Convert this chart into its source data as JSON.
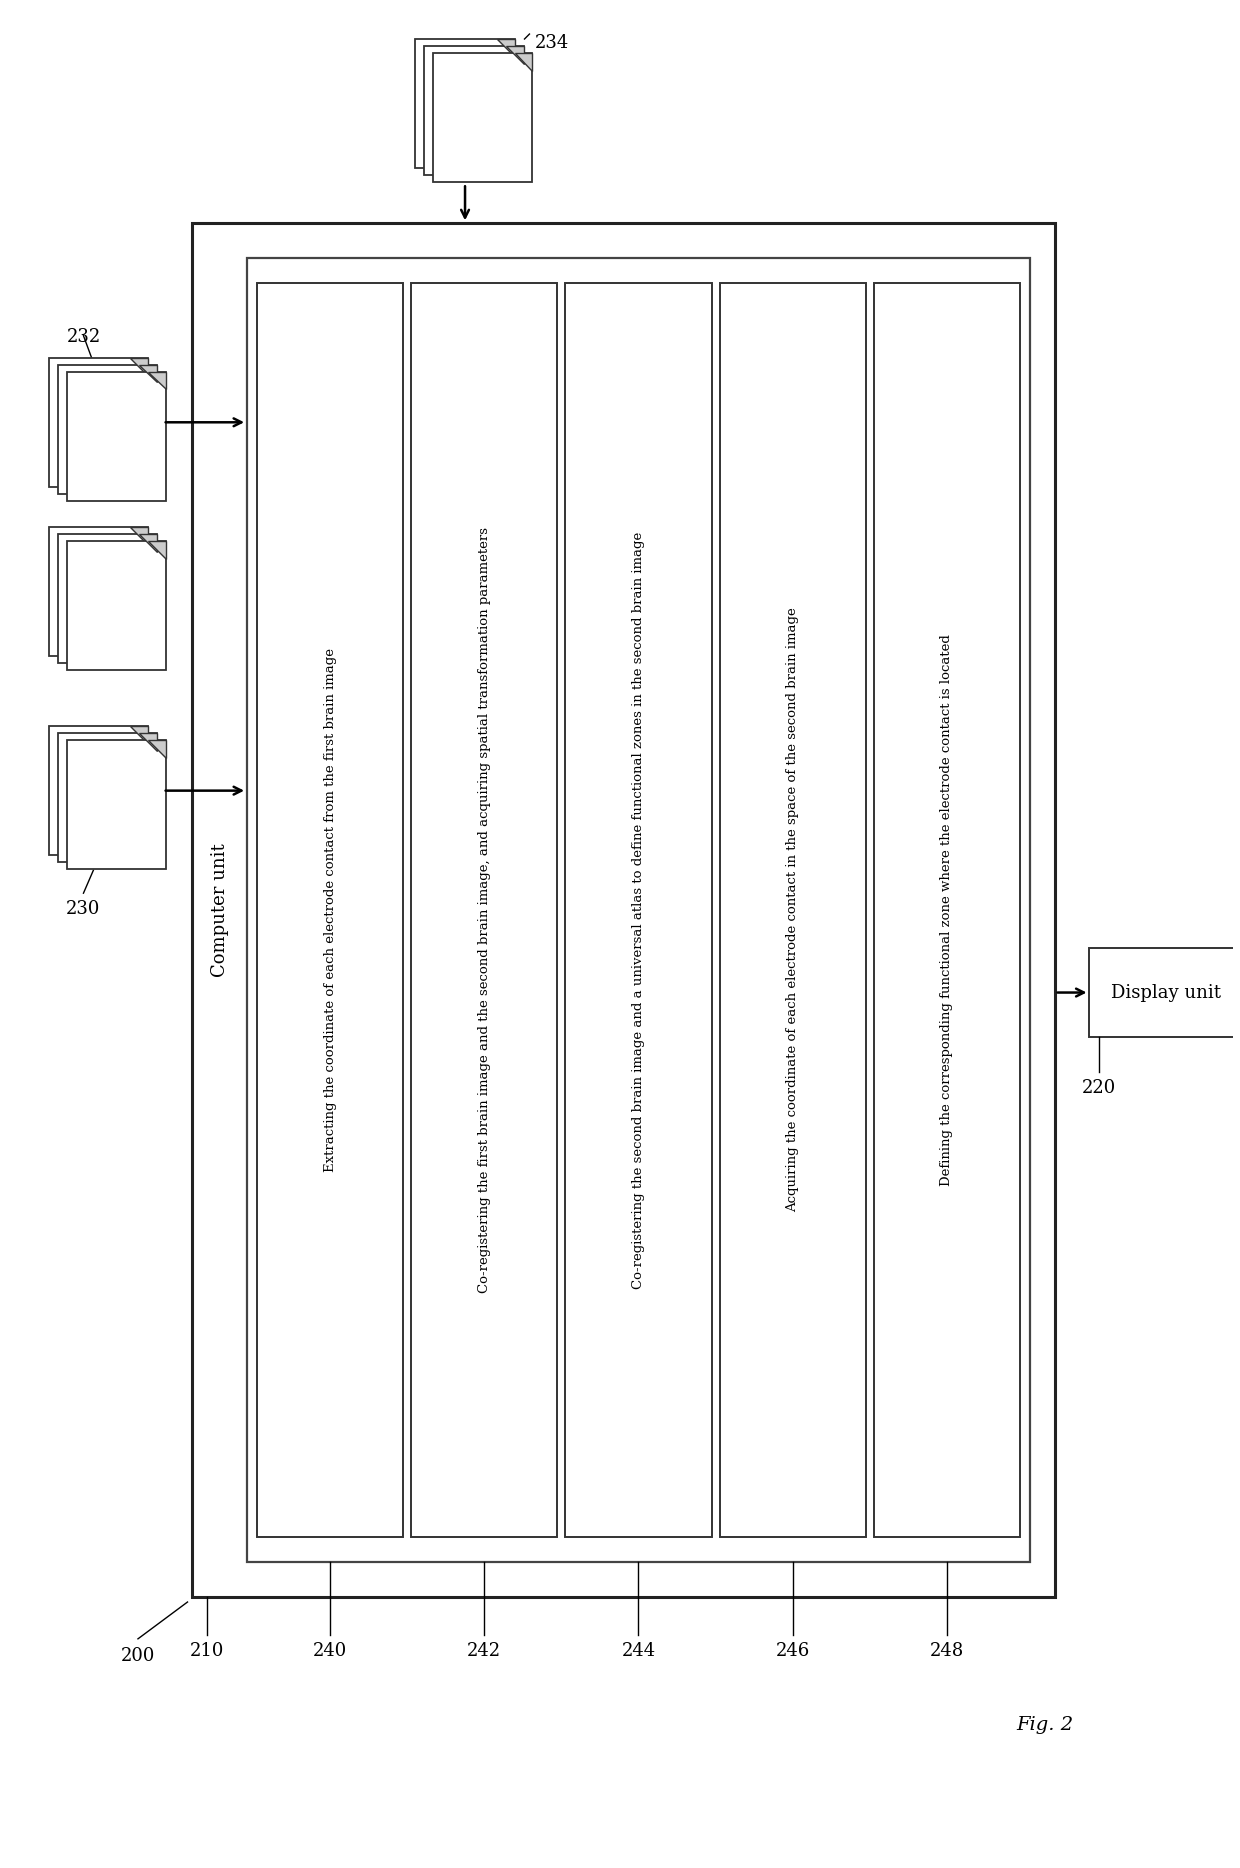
{
  "figure_label": "Fig. 2",
  "bg_color": "#ffffff",
  "cols": [
    {
      "id": "240",
      "text": "Extracting the coordinate of each electrode contact from the first brain image"
    },
    {
      "id": "242",
      "text": "Co-registering the first brain image and the second brain image, and acquiring spatial transformation parameters"
    },
    {
      "id": "244",
      "text": "Co-registering the second brain image and a universal atlas to define functional zones in the second brain image"
    },
    {
      "id": "246",
      "text": "Acquiring the coordinate of each electrode contact in the space of the second brain image"
    },
    {
      "id": "248",
      "text": "Defining the corresponding functional zone where the electrode contact is located"
    }
  ],
  "computer_unit_text": "Computer unit",
  "computer_unit_id": "210",
  "display_unit_text": "Display unit",
  "display_unit_id": "220",
  "outer_id": "200",
  "img230_id": "230",
  "img232_id": "232",
  "img234_id": "234",
  "fig_label": "Fig. 2",
  "font_size_label": 13,
  "font_size_text": 9.5,
  "font_size_fig": 14
}
